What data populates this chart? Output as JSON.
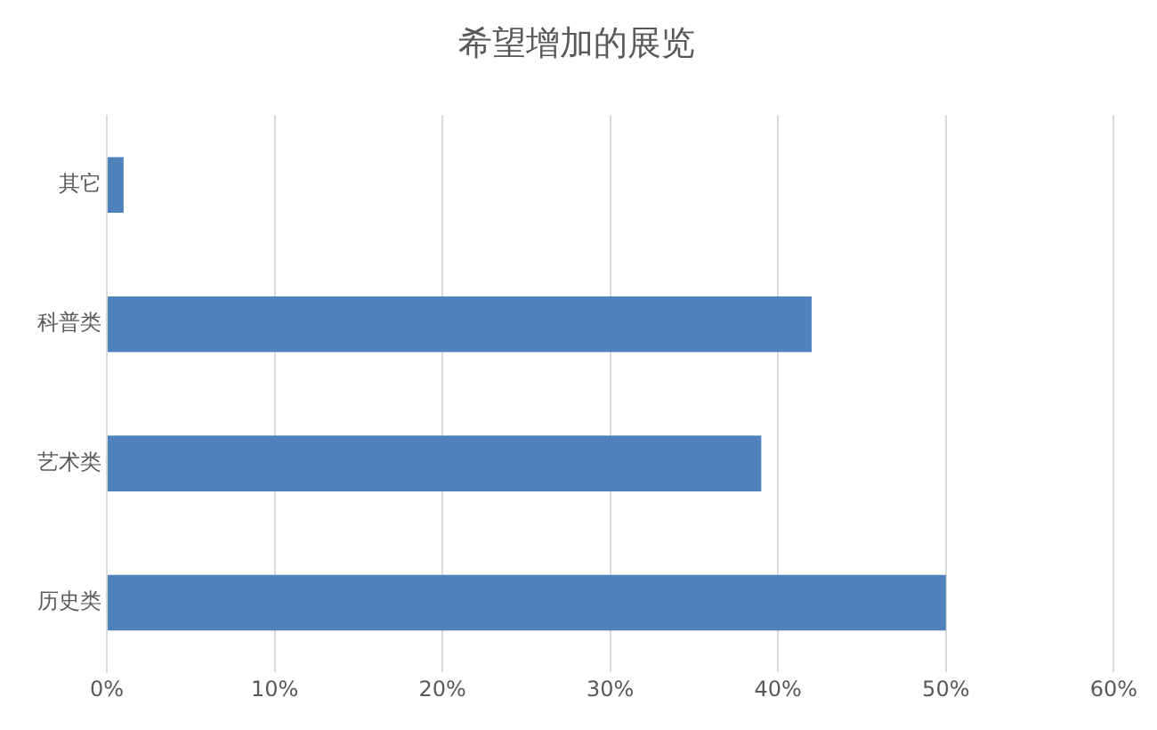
{
  "chart_data": {
    "type": "bar",
    "orientation": "horizontal",
    "title": "希望增加的展览",
    "categories": [
      "其它",
      "科普类",
      "艺术类",
      "历史类"
    ],
    "values": [
      1,
      42,
      39,
      50
    ],
    "color": "#4f81bd",
    "xlim": [
      0,
      60
    ],
    "xticks": [
      {
        "value": 0,
        "label": "0%"
      },
      {
        "value": 10,
        "label": "10%"
      },
      {
        "value": 20,
        "label": "20%"
      },
      {
        "value": 30,
        "label": "30%"
      },
      {
        "value": 40,
        "label": "40%"
      },
      {
        "value": 50,
        "label": "50%"
      },
      {
        "value": 60,
        "label": "60%"
      }
    ],
    "grid": "x"
  }
}
